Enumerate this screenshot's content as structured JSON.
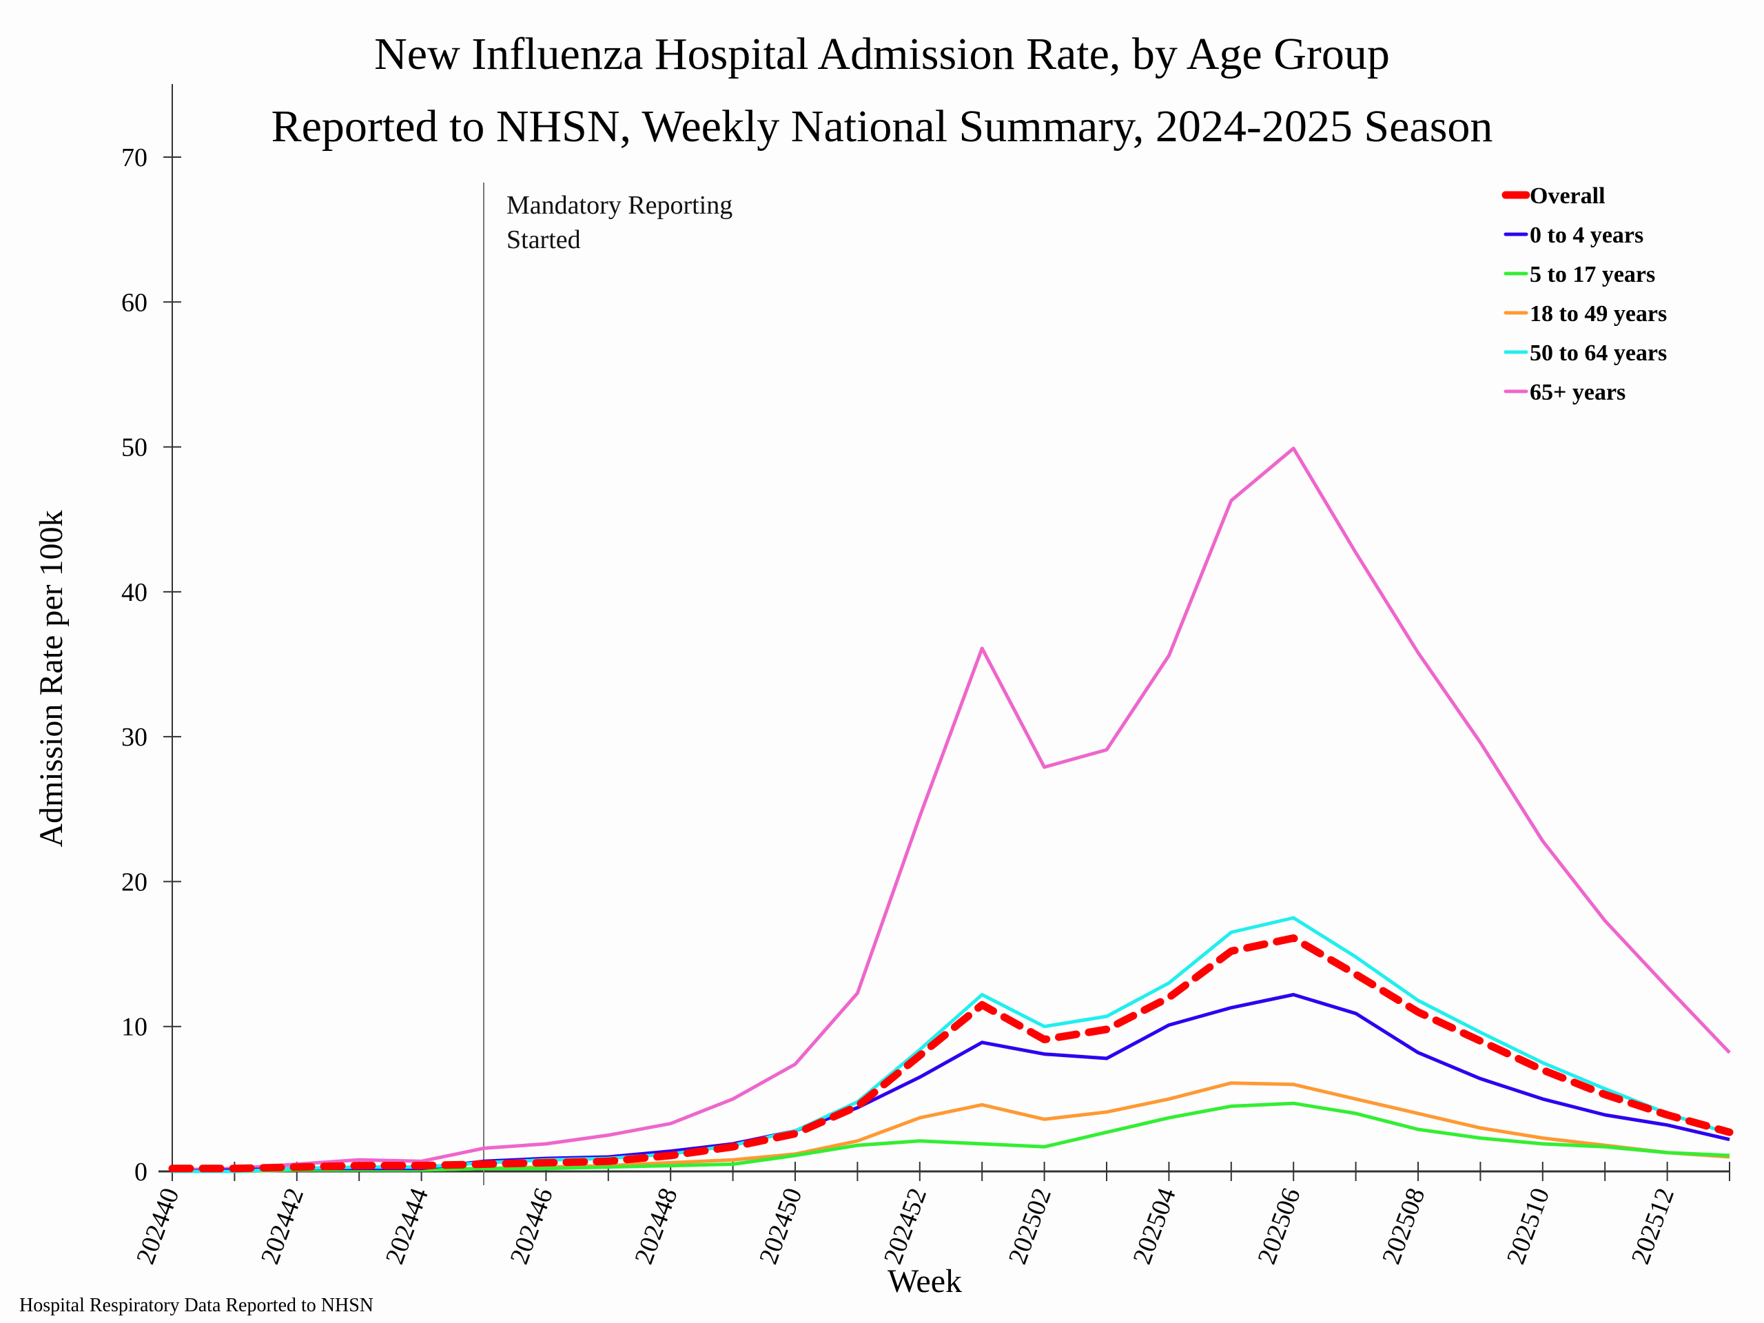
{
  "chart_data": {
    "type": "line",
    "title": "New Influenza Hospital Admission Rate, by Age Group",
    "subtitle": "Reported to NHSN, Weekly National Summary, 2024-2025 Season",
    "xlabel": "Week",
    "ylabel": "Admission Rate per 100k",
    "ylim": [
      0,
      75
    ],
    "yticks": [
      0,
      10,
      20,
      30,
      40,
      50,
      60,
      70
    ],
    "x": [
      "202440",
      "202441",
      "202442",
      "202443",
      "202444",
      "202445",
      "202446",
      "202447",
      "202448",
      "202449",
      "202450",
      "202451",
      "202452",
      "202501",
      "202502",
      "202503",
      "202504",
      "202505",
      "202506",
      "202507",
      "202508",
      "202509",
      "202510",
      "202511",
      "202512",
      "202513"
    ],
    "xtick_labels": [
      "202440",
      "202442",
      "202444",
      "202446",
      "202448",
      "202450",
      "202452",
      "202502",
      "202504",
      "202506",
      "202508",
      "202510",
      "202512"
    ],
    "grid": false,
    "legend_position": "top-right",
    "annotation": {
      "x": "202445",
      "lines": [
        "Mandatory Reporting",
        "Started"
      ]
    },
    "source_note": "Hospital Respiratory Data Reported to NHSN",
    "series": [
      {
        "name": "Overall",
        "color": "#ff0000",
        "dashed": true,
        "values": [
          0.2,
          0.2,
          0.3,
          0.4,
          0.4,
          0.5,
          0.6,
          0.7,
          1.1,
          1.7,
          2.6,
          4.5,
          8.0,
          11.5,
          9.1,
          9.8,
          12.0,
          15.2,
          16.1,
          13.6,
          11.0,
          9.0,
          7.0,
          5.3,
          3.9,
          2.7
        ]
      },
      {
        "name": "0 to 4 years",
        "color": "#2d00f0",
        "dashed": false,
        "values": [
          0.0,
          0.1,
          0.2,
          0.2,
          0.2,
          0.7,
          0.9,
          1.0,
          1.4,
          1.9,
          2.8,
          4.4,
          6.5,
          8.9,
          8.1,
          7.8,
          10.1,
          11.3,
          12.2,
          10.9,
          8.2,
          6.4,
          5.0,
          3.9,
          3.2,
          2.2
        ]
      },
      {
        "name": "5 to 17 years",
        "color": "#33ee33",
        "dashed": false,
        "values": [
          0.0,
          0.0,
          0.1,
          0.1,
          0.1,
          0.2,
          0.2,
          0.3,
          0.4,
          0.5,
          1.1,
          1.8,
          2.1,
          1.9,
          1.7,
          2.7,
          3.7,
          4.5,
          4.7,
          4.0,
          2.9,
          2.3,
          1.9,
          1.7,
          1.3,
          1.1
        ]
      },
      {
        "name": "18 to 49 years",
        "color": "#ff9933",
        "dashed": false,
        "values": [
          0.0,
          0.0,
          0.1,
          0.1,
          0.1,
          0.2,
          0.3,
          0.4,
          0.6,
          0.8,
          1.2,
          2.1,
          3.7,
          4.6,
          3.6,
          4.1,
          5.0,
          6.1,
          6.0,
          5.0,
          4.0,
          3.0,
          2.3,
          1.8,
          1.3,
          1.0
        ]
      },
      {
        "name": "50 to 64 years",
        "color": "#22eeee",
        "dashed": false,
        "values": [
          0.0,
          0.0,
          0.2,
          0.3,
          0.3,
          0.6,
          0.8,
          0.9,
          1.2,
          1.8,
          2.8,
          4.8,
          8.4,
          12.2,
          10.0,
          10.7,
          13.0,
          16.5,
          17.5,
          14.8,
          11.8,
          9.6,
          7.5,
          5.7,
          4.0,
          2.6
        ]
      },
      {
        "name": "65+ years",
        "color": "#ee66cc",
        "dashed": false,
        "values": [
          0.1,
          0.2,
          0.5,
          0.8,
          0.7,
          1.6,
          1.9,
          2.5,
          3.3,
          5.0,
          7.4,
          12.3,
          24.5,
          36.1,
          27.9,
          29.1,
          35.6,
          46.3,
          49.9,
          42.7,
          35.8,
          29.6,
          22.8,
          17.3,
          12.7,
          8.2
        ]
      }
    ]
  }
}
